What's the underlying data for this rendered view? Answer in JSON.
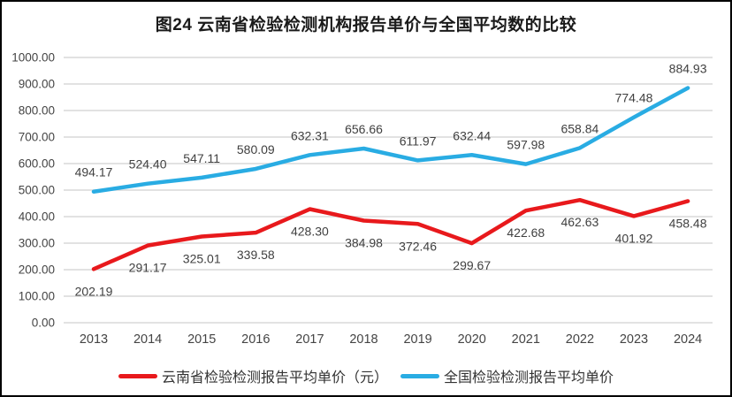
{
  "chart_data": {
    "type": "line",
    "title": "图24 云南省检验检测机构报告单价与全国平均数的比较",
    "categories": [
      "2013",
      "2014",
      "2015",
      "2016",
      "2017",
      "2018",
      "2019",
      "2020",
      "2021",
      "2022",
      "2023",
      "2024"
    ],
    "series": [
      {
        "name": "云南省检验检测报告平均单价（元）",
        "color": "#e8191c",
        "label_position": "below",
        "values": [
          202.19,
          291.17,
          325.01,
          339.58,
          428.3,
          384.98,
          372.46,
          299.67,
          422.68,
          462.63,
          401.92,
          458.48
        ],
        "labels": [
          "202.19",
          "291.17",
          "325.01",
          "339.58",
          "428.30",
          "384.98",
          "372.46",
          "299.67",
          "422.68",
          "462.63",
          "401.92",
          "458.48"
        ]
      },
      {
        "name": "全国检验检测报告平均单价",
        "color": "#29ace3",
        "label_position": "above",
        "values": [
          494.17,
          524.4,
          547.11,
          580.09,
          632.31,
          656.66,
          611.97,
          632.44,
          597.98,
          658.84,
          774.48,
          884.93
        ],
        "labels": [
          "494.17",
          "524.40",
          "547.11",
          "580.09",
          "632.31",
          "656.66",
          "611.97",
          "632.44",
          "597.98",
          "658.84",
          "774.48",
          "884.93"
        ]
      }
    ],
    "ylim": [
      0,
      1000
    ],
    "ytick_step": 100,
    "ytick_labels": [
      "0.00",
      "100.00",
      "200.00",
      "300.00",
      "400.00",
      "500.00",
      "600.00",
      "700.00",
      "800.00",
      "900.00",
      "1000.00"
    ],
    "grid": true,
    "legend_position": "bottom",
    "colors": {
      "grid": "#d9d9d9",
      "axis_text": "#444444",
      "data_label": "#404040",
      "title": "#1a1a1a",
      "legend_text": "#333333",
      "border": "#000000",
      "background": "#ffffff"
    }
  }
}
